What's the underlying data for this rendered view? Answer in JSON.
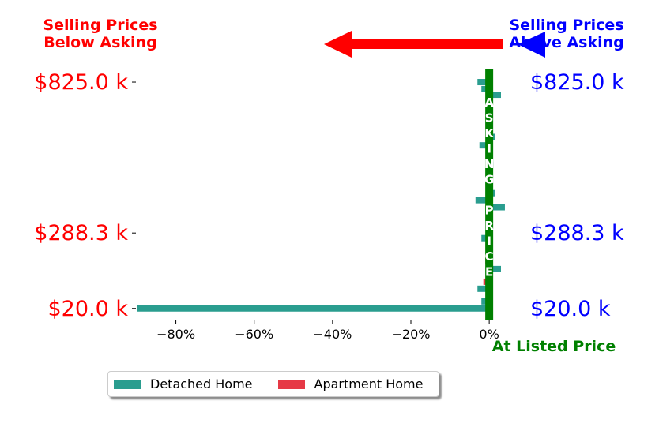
{
  "annotations": {
    "below_title": [
      "Selling Prices",
      "Below Asking"
    ],
    "above_title": [
      "Selling Prices",
      "Above Asking"
    ],
    "center_label": "At Listed Price",
    "vertical_letters": [
      "A",
      "S",
      "K",
      "I",
      "N",
      "G",
      "",
      "P",
      "R",
      "I",
      "C",
      "E"
    ]
  },
  "colors": {
    "detached": "#2a9d8f",
    "apartment": "#e63946",
    "asking_line": "#008000",
    "below": "#ff0000",
    "above": "#0000ff"
  },
  "legend": [
    {
      "label": "Detached Home",
      "color": "#2a9d8f"
    },
    {
      "label": "Apartment Home",
      "color": "#e63946"
    }
  ],
  "chart_data": {
    "type": "bar",
    "orientation": "horizontal",
    "title": "",
    "xlabel": "",
    "ylabel": "",
    "xlim": [
      -0.9,
      0.03
    ],
    "x_ticks": [
      -0.8,
      -0.6,
      -0.4,
      -0.2,
      0.0
    ],
    "x_tick_labels": [
      "−80%",
      "−60%",
      "−40%",
      "−20%",
      "0%"
    ],
    "y_ticks": [
      20.0,
      288.3,
      825.0
    ],
    "y_tick_labels_left": [
      "$20.0 k",
      "$288.3 k",
      "$825.0 k"
    ],
    "y_tick_labels_right": [
      "$20.0 k",
      "$288.3 k",
      "$825.0 k"
    ],
    "ylim": [
      -20,
      870
    ],
    "grid": false,
    "legend_position": "bottom-left",
    "series": [
      {
        "name": "Detached Home",
        "points": [
          {
            "y": 20.0,
            "x": -0.9
          },
          {
            "y": 45,
            "x": -0.02
          },
          {
            "y": 90,
            "x": -0.03
          },
          {
            "y": 160,
            "x": 0.03
          },
          {
            "y": 270,
            "x": -0.02
          },
          {
            "y": 380,
            "x": 0.04
          },
          {
            "y": 405,
            "x": -0.035
          },
          {
            "y": 430,
            "x": 0.015
          },
          {
            "y": 530,
            "x": 0.01
          },
          {
            "y": 600,
            "x": -0.025
          },
          {
            "y": 630,
            "x": 0.015
          },
          {
            "y": 780,
            "x": 0.03
          },
          {
            "y": 800,
            "x": -0.02
          },
          {
            "y": 825,
            "x": -0.03
          }
        ]
      },
      {
        "name": "Apartment Home",
        "points": [
          {
            "y": 115,
            "x": -0.015
          },
          {
            "y": 190,
            "x": -0.01
          }
        ]
      }
    ]
  }
}
